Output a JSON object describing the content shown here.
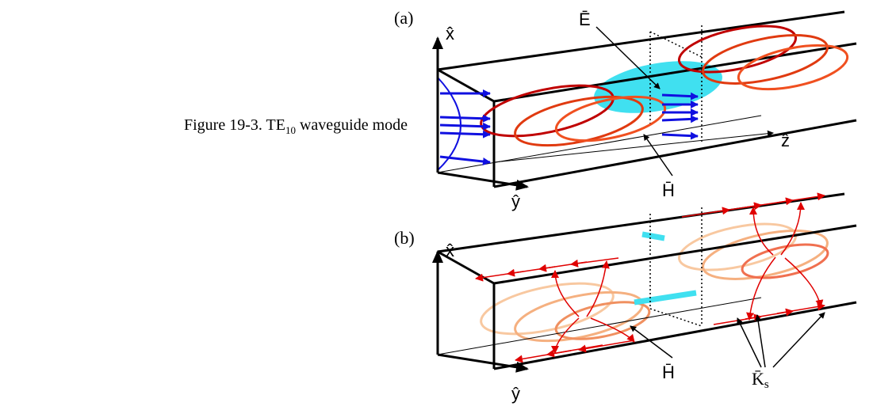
{
  "caption": {
    "prefix": "Figure 19-3.  TE",
    "subscript": "10",
    "suffix": " waveguide mode"
  },
  "panels": [
    {
      "label": "(a)",
      "axes": {
        "x": "x̂",
        "y": "ŷ",
        "z": "ẑ"
      },
      "labels": {
        "E": "Ē",
        "H": "H̄"
      }
    },
    {
      "label": "(b)",
      "axes": {
        "x": "x̂",
        "y": "ŷ"
      },
      "labels": {
        "H": "H̄",
        "K": "K̄",
        "K_sub": "s"
      }
    }
  ]
}
